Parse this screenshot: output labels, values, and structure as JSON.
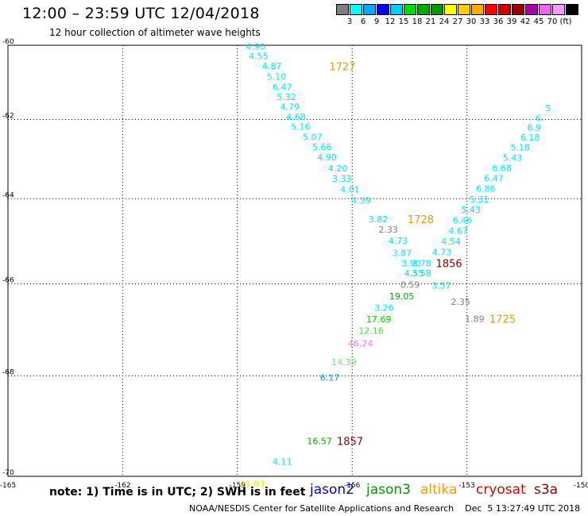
{
  "header": {
    "title": "12:00 – 23:59 UTC 12/04/2018",
    "subtitle": "12 hour collection of altimeter wave heights"
  },
  "colorbar": {
    "colors": [
      "#7f7f7f",
      "#00ffff",
      "#00aaff",
      "#0000ff",
      "#00ccff",
      "#00dd00",
      "#00aa00",
      "#009900",
      "#ffff00",
      "#ffcc00",
      "#ffaa00",
      "#ff0000",
      "#cc0000",
      "#990000",
      "#aa00aa",
      "#ee66ee",
      "#ff99ff",
      "#000000"
    ],
    "labels": [
      "3",
      "6",
      "9",
      "12",
      "15",
      "18",
      "21",
      "24",
      "27",
      "30",
      "33",
      "36",
      "39",
      "42",
      "45",
      "70",
      "(ft)"
    ]
  },
  "map": {
    "y_ticks": [
      "-60",
      "-62",
      "-64",
      "-66",
      "-68",
      "-70"
    ],
    "x_ticks": [
      "-165",
      "-162",
      "-159",
      "-156",
      "-153",
      "-150"
    ],
    "points": [
      {
        "text": "4.90",
        "color": "#00e6ff",
        "lon": -158.78,
        "lat": -60.03
      },
      {
        "text": "4.55",
        "color": "#00e6ff",
        "lon": -158.7,
        "lat": -60.3
      },
      {
        "text": "4.87",
        "color": "#00e6ff",
        "lon": -158.35,
        "lat": -60.57
      },
      {
        "text": "5.10",
        "color": "#00e6ff",
        "lon": -158.23,
        "lat": -60.86
      },
      {
        "text": "6.47",
        "color": "#00e6ff",
        "lon": -158.08,
        "lat": -61.14
      },
      {
        "text": "5.32",
        "color": "#00e6ff",
        "lon": -157.97,
        "lat": -61.4
      },
      {
        "text": "4.79",
        "color": "#00e6ff",
        "lon": -157.88,
        "lat": -61.67
      },
      {
        "text": "4.68",
        "color": "#00e6ff",
        "lon": -157.72,
        "lat": -61.93
      },
      {
        "text": "5.16",
        "color": "#00e6ff",
        "lon": -157.6,
        "lat": -62.19
      },
      {
        "text": "5.07",
        "color": "#00e6ff",
        "lon": -157.29,
        "lat": -62.45
      },
      {
        "text": "5.66",
        "color": "#00e6ff",
        "lon": -157.04,
        "lat": -62.71
      },
      {
        "text": "4.90",
        "color": "#00e6ff",
        "lon": -156.91,
        "lat": -62.97
      },
      {
        "text": "4.20",
        "color": "#00e6ff",
        "lon": -156.63,
        "lat": -63.25
      },
      {
        "text": "3.33",
        "color": "#00e6ff",
        "lon": -156.52,
        "lat": -63.51
      },
      {
        "text": "4.01",
        "color": "#00e6ff",
        "lon": -156.31,
        "lat": -63.77
      },
      {
        "text": "4.39",
        "color": "#00e6ff",
        "lon": -156.02,
        "lat": -64.04
      },
      {
        "text": "3.82",
        "color": "#00e6ff",
        "lon": -155.57,
        "lat": -64.49
      },
      {
        "text": "2.33",
        "color": "#7f7f7f",
        "lon": -155.31,
        "lat": -64.74
      },
      {
        "text": "4.73",
        "color": "#00e6ff",
        "lon": -155.05,
        "lat": -65.0
      },
      {
        "text": "3.87",
        "color": "#00e6ff",
        "lon": -154.95,
        "lat": -65.29
      },
      {
        "text": "3.90",
        "color": "#00e6ff",
        "lon": -154.71,
        "lat": -65.53
      },
      {
        "text": "3.78",
        "color": "#00e6ff",
        "lon": -154.44,
        "lat": -65.53
      },
      {
        "text": "4.55",
        "color": "#00e6ff",
        "lon": -154.64,
        "lat": -65.76
      },
      {
        "text": "3.58",
        "color": "#00e6ff",
        "lon": -154.44,
        "lat": -65.76
      },
      {
        "text": "0.59",
        "color": "#7f7f7f",
        "lon": -154.74,
        "lat": -66.02
      },
      {
        "text": "19.05",
        "color": "#00aa00",
        "lon": -155.03,
        "lat": -66.28
      },
      {
        "text": "3.26",
        "color": "#00e6ff",
        "lon": -155.42,
        "lat": -66.53
      },
      {
        "text": "17.69",
        "color": "#00cc00",
        "lon": -155.63,
        "lat": -66.79
      },
      {
        "text": "12.16",
        "color": "#44dd44",
        "lon": -155.83,
        "lat": -67.04
      },
      {
        "text": "46.24",
        "color": "#ee77ee",
        "lon": -156.11,
        "lat": -67.31
      },
      {
        "text": "14.39",
        "color": "#66ee66",
        "lon": -156.54,
        "lat": -67.71
      },
      {
        "text": "6.17",
        "color": "#0099ff",
        "lon": -156.84,
        "lat": -68.03
      },
      {
        "text": "3.57",
        "color": "#00e6ff",
        "lon": -153.92,
        "lat": -66.04
      },
      {
        "text": "2.35",
        "color": "#7f7f7f",
        "lon": -153.42,
        "lat": -66.4
      },
      {
        "text": "1.89",
        "color": "#7f7f7f",
        "lon": -153.05,
        "lat": -66.78
      },
      {
        "text": "4.73",
        "color": "#00e6ff",
        "lon": -153.91,
        "lat": -65.27
      },
      {
        "text": "4.54",
        "color": "#00e6ff",
        "lon": -153.67,
        "lat": -65.02
      },
      {
        "text": "4.67",
        "color": "#00e6ff",
        "lon": -153.48,
        "lat": -64.77
      },
      {
        "text": "6.46",
        "color": "#00e6ff",
        "lon": -153.37,
        "lat": -64.52
      },
      {
        "text": "5.43",
        "color": "#00e6ff",
        "lon": -153.15,
        "lat": -64.26
      },
      {
        "text": "5.31",
        "color": "#00e6ff",
        "lon": -152.93,
        "lat": -64.01
      },
      {
        "text": "6.86",
        "color": "#00e6ff",
        "lon": -152.76,
        "lat": -63.75
      },
      {
        "text": "6.47",
        "color": "#00e6ff",
        "lon": -152.55,
        "lat": -63.5
      },
      {
        "text": "6.68",
        "color": "#00e6ff",
        "lon": -152.34,
        "lat": -63.24
      },
      {
        "text": "5.43",
        "color": "#00e6ff",
        "lon": -152.06,
        "lat": -62.98
      },
      {
        "text": "5.18",
        "color": "#00e6ff",
        "lon": -151.86,
        "lat": -62.72
      },
      {
        "text": "6.18",
        "color": "#00e6ff",
        "lon": -151.6,
        "lat": -62.46
      },
      {
        "text": "6.9",
        "color": "#00e6ff",
        "lon": -151.42,
        "lat": -62.21
      },
      {
        "text": "6.",
        "color": "#00e6ff",
        "lon": -151.2,
        "lat": -61.96
      },
      {
        "text": "5",
        "color": "#00e6ff",
        "lon": -150.95,
        "lat": -61.7
      },
      {
        "text": "16.57",
        "color": "#00aa00",
        "lon": -157.18,
        "lat": -69.32
      },
      {
        "text": "4.11",
        "color": "#00e6ff",
        "lon": -158.08,
        "lat": -69.72
      },
      {
        "text": "21.93",
        "color": "#e6e600",
        "lon": -158.94,
        "lat": -70.14
      }
    ],
    "passes": [
      {
        "text": "1727",
        "color": "#ee9900",
        "lon": -156.6,
        "lat": -60.58
      },
      {
        "text": "1728",
        "color": "#ee9900",
        "lon": -154.55,
        "lat": -64.49
      },
      {
        "text": "1856",
        "color": "#880000",
        "lon": -153.81,
        "lat": -65.53
      },
      {
        "text": "1725",
        "color": "#ee9900",
        "lon": -152.41,
        "lat": -66.78
      },
      {
        "text": "1857",
        "color": "#880000",
        "lon": -156.4,
        "lat": -69.32
      }
    ]
  },
  "footer": {
    "note": "note: 1) Time is in UTC; 2) SWH is in feet",
    "missions": [
      {
        "name": "jason2",
        "color": "#0000cc"
      },
      {
        "name": "jason3",
        "color": "#009900"
      },
      {
        "name": "altika",
        "color": "#ff9900"
      },
      {
        "name": "cryosat",
        "color": "#dd0000"
      },
      {
        "name": "s3a",
        "color": "#880000"
      }
    ],
    "credit": "NOAA/NESDIS Center for Satellite Applications and Research    Dec  5 13:27:49 UTC 2018"
  }
}
